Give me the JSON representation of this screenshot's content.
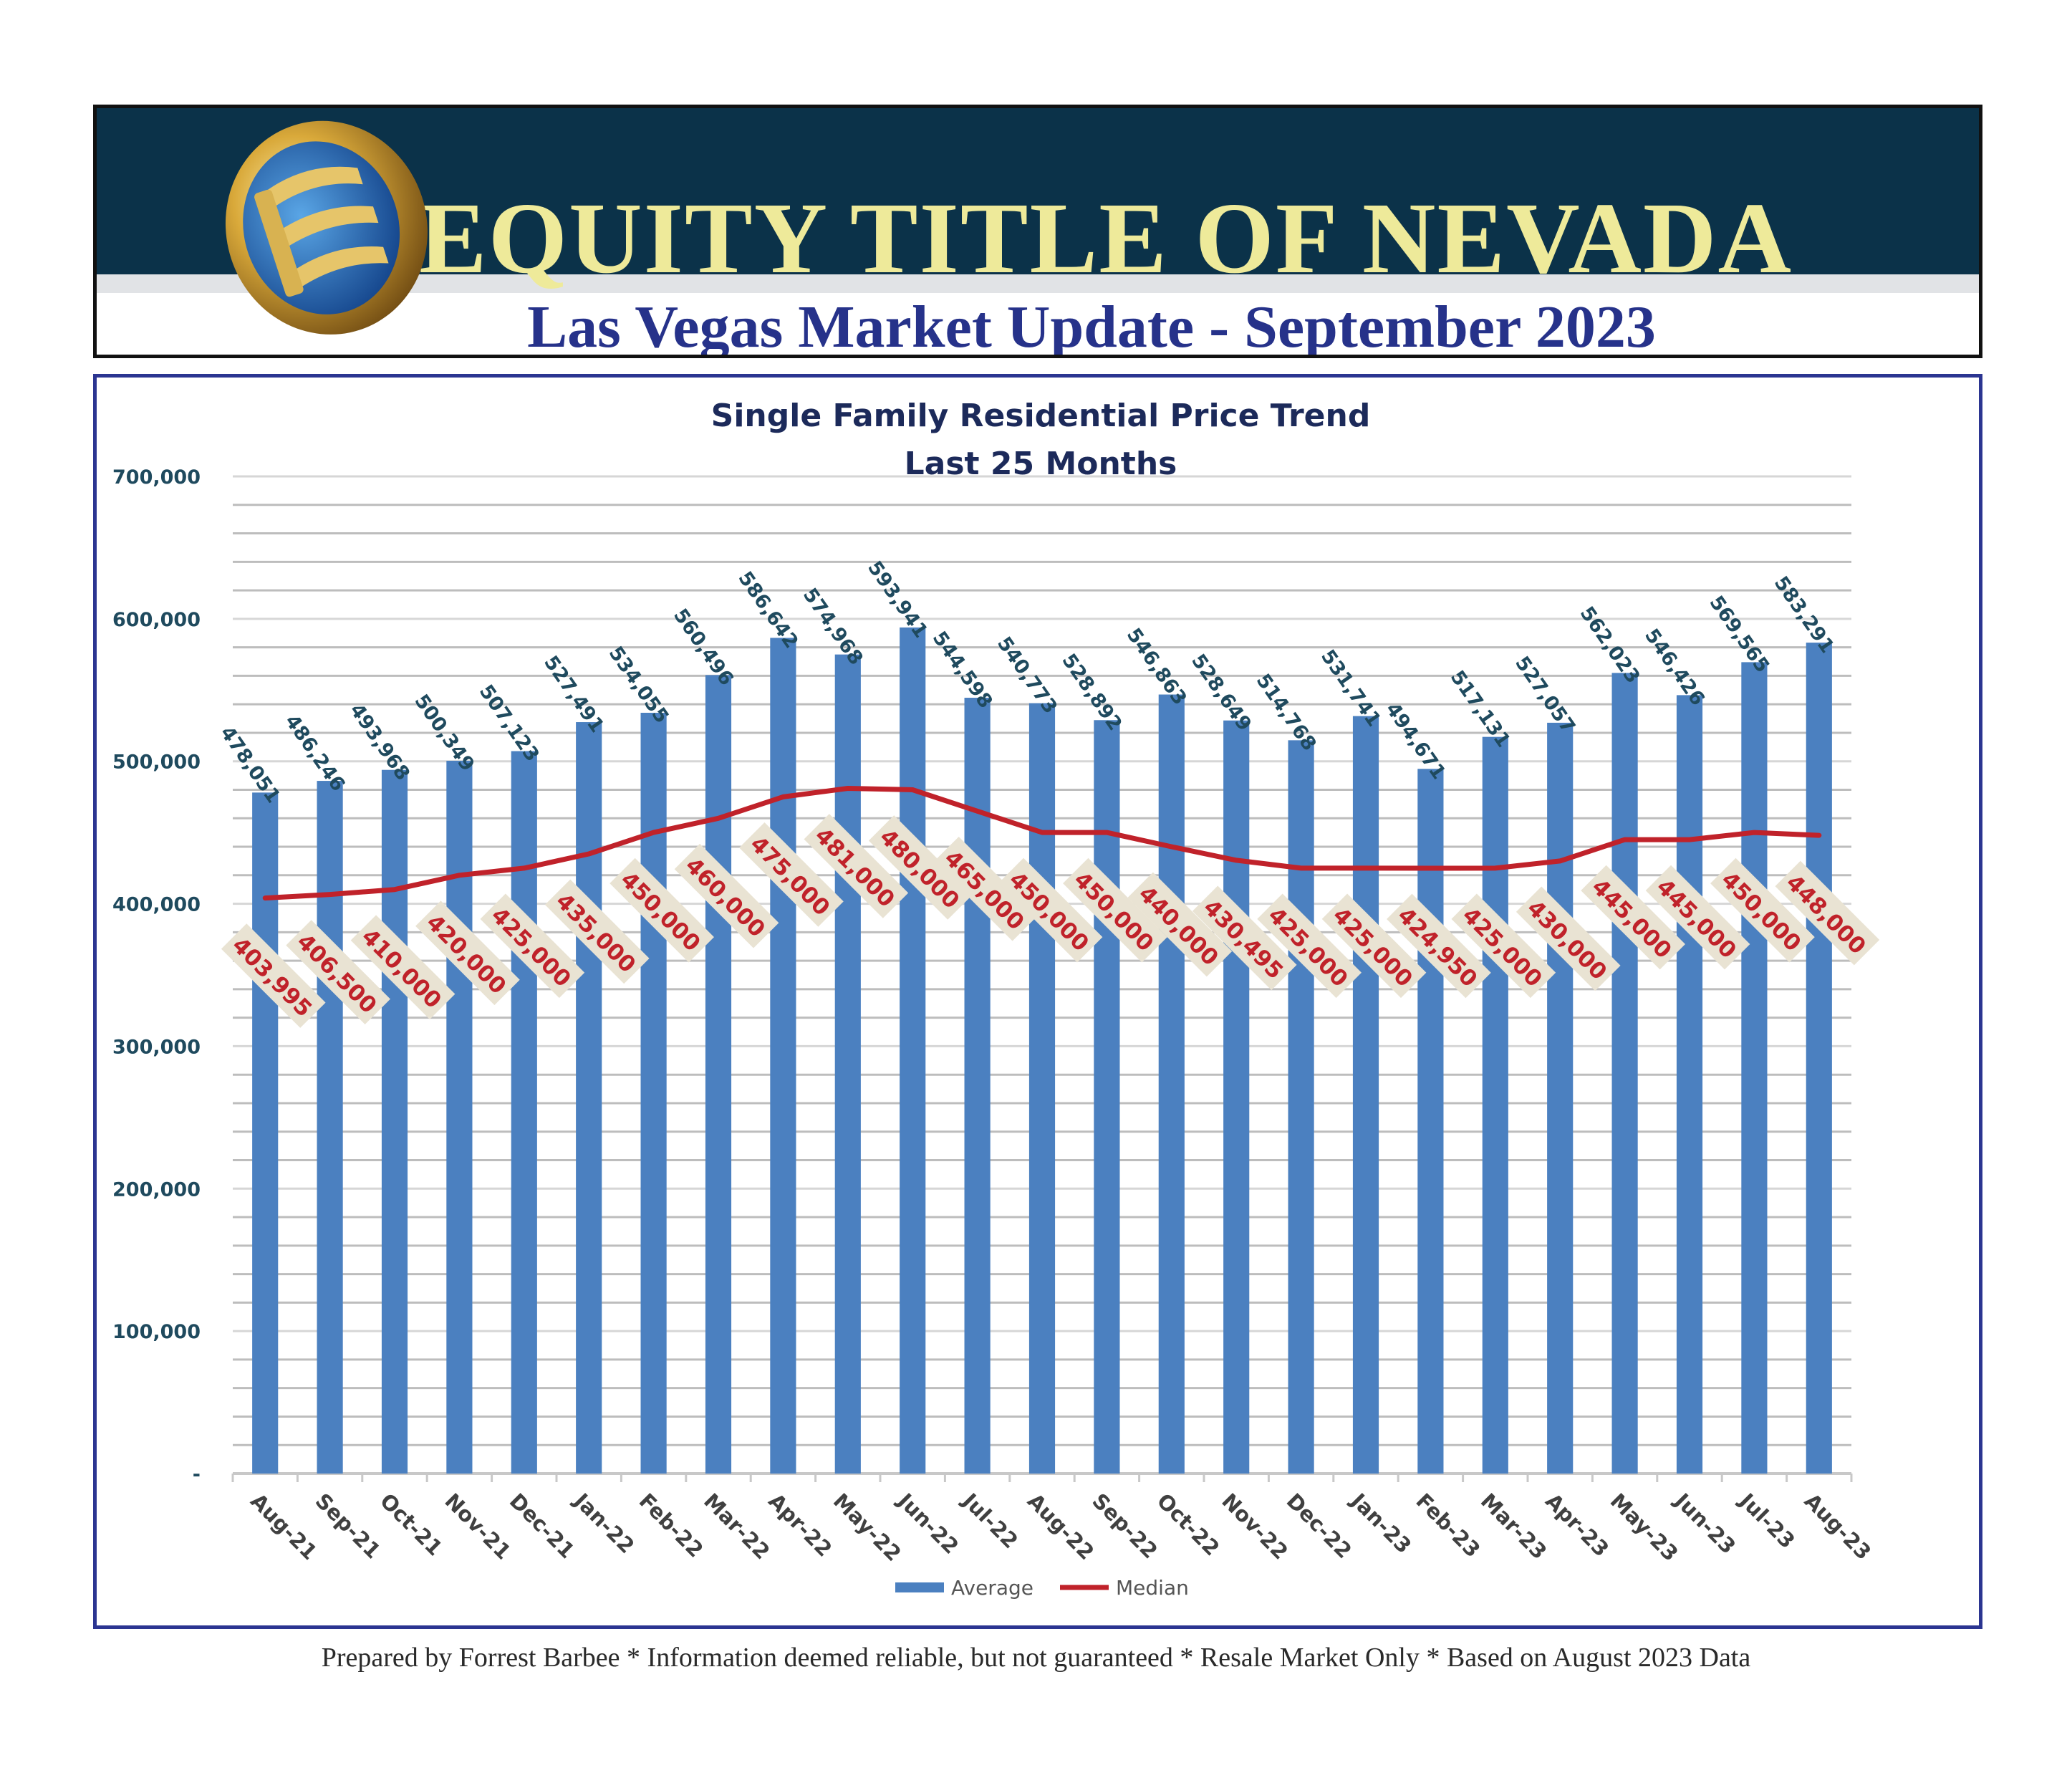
{
  "header": {
    "company_name": "EQUITY TITLE OF NEVADA",
    "report_title": "Las Vegas Market Update - September 2023"
  },
  "footer": {
    "text": "Prepared by Forrest Barbee * Information deemed reliable, but not guaranteed * Resale Market Only * Based on August 2023 Data"
  },
  "colors": {
    "header_bg": "#0b3249",
    "header_text": "#eeea9a",
    "subtitle_text": "#26328a",
    "bar": "#4b80c0",
    "line": "#c0222a",
    "bar_label": "#1f4a5e",
    "median_label": "#c0222a",
    "median_label_bg": "#e9e3d3"
  },
  "chart_data": {
    "type": "bar",
    "title": "Single Family Residential Price Trend",
    "subtitle": "Last 25 Months",
    "categories": [
      "Aug-21",
      "Sep-21",
      "Oct-21",
      "Nov-21",
      "Dec-21",
      "Jan-22",
      "Feb-22",
      "Mar-22",
      "Apr-22",
      "May-22",
      "Jun-22",
      "Jul-22",
      "Aug-22",
      "Sep-22",
      "Oct-22",
      "Nov-22",
      "Dec-22",
      "Jan-23",
      "Feb-23",
      "Mar-23",
      "Apr-23",
      "May-23",
      "Jun-23",
      "Jul-23",
      "Aug-23"
    ],
    "series": [
      {
        "name": "Average",
        "type": "bar",
        "values": [
          478051,
          486246,
          493968,
          500349,
          507123,
          527491,
          534055,
          560496,
          586642,
          574968,
          593941,
          544598,
          540773,
          528892,
          546863,
          528649,
          514768,
          531741,
          494671,
          517131,
          527057,
          562023,
          546426,
          569565,
          583291
        ],
        "labels": [
          "478,051",
          "486,246",
          "493,968",
          "500,349",
          "507,123",
          "527,491",
          "534,055",
          "560,496",
          "586,642",
          "574,968",
          "593,941",
          "544,598",
          "540,773",
          "528,892",
          "546,863",
          "528,649",
          "514,768",
          "531,741",
          "494,671",
          "517,131",
          "527,057",
          "562,023",
          "546,426",
          "569,565",
          "583,291"
        ]
      },
      {
        "name": "Median",
        "type": "line",
        "values": [
          403995,
          406500,
          410000,
          420000,
          425000,
          435000,
          450000,
          460000,
          475000,
          481000,
          480000,
          465000,
          450000,
          450000,
          440000,
          430495,
          425000,
          425000,
          424950,
          425000,
          430000,
          445000,
          445000,
          450000,
          448000
        ],
        "labels": [
          "403,995",
          "406,500",
          "410,000",
          "420,000",
          "425,000",
          "435,000",
          "450,000",
          "460,000",
          "475,000",
          "481,000",
          "480,000",
          "465,000",
          "450,000",
          "450,000",
          "440,000",
          "430,495",
          "425,000",
          "425,000",
          "424,950",
          "425,000",
          "430,000",
          "445,000",
          "445,000",
          "450,000",
          "448,000"
        ]
      }
    ],
    "ylim": [
      0,
      700000
    ],
    "yticks": [
      0,
      100000,
      200000,
      300000,
      400000,
      500000,
      600000,
      700000
    ],
    "ytick_labels": [
      "-",
      "100,000",
      "200,000",
      "300,000",
      "400,000",
      "500,000",
      "600,000",
      "700,000"
    ],
    "grid": true,
    "legend_position": "bottom"
  }
}
